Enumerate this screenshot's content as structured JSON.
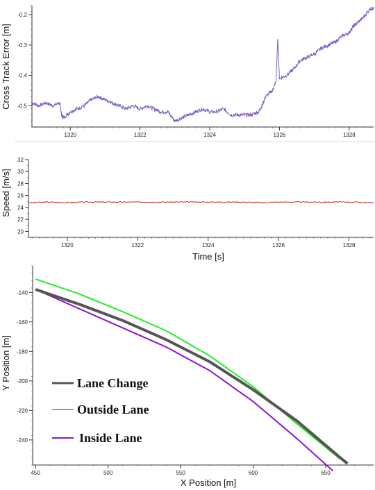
{
  "chart_data": [
    {
      "type": "line",
      "ylabel": "Cross Track Error [m]",
      "xlabel": "",
      "xlim": [
        1318.9,
        1328.7
      ],
      "ylim": [
        -0.57,
        -0.17
      ],
      "xticks": [
        1320,
        1322,
        1324,
        1326,
        1328
      ],
      "yticks": [
        -0.5,
        -0.4,
        -0.3,
        -0.2
      ],
      "grid": false,
      "series": [
        {
          "color": "#7b5cc4",
          "x": [
            1318.9,
            1319.1,
            1319.3,
            1319.5,
            1319.7,
            1319.75,
            1319.8,
            1320.0,
            1320.2,
            1320.4,
            1320.6,
            1320.8,
            1321.0,
            1321.2,
            1321.4,
            1321.6,
            1321.8,
            1322.0,
            1322.2,
            1322.4,
            1322.6,
            1322.8,
            1323.0,
            1323.2,
            1323.4,
            1323.6,
            1323.8,
            1324.0,
            1324.2,
            1324.4,
            1324.6,
            1324.8,
            1325.0,
            1325.2,
            1325.4,
            1325.5,
            1325.6,
            1325.8,
            1325.9,
            1325.95,
            1326.0,
            1326.2,
            1326.4,
            1326.6,
            1326.8,
            1327.0,
            1327.2,
            1327.4,
            1327.6,
            1327.8,
            1328.0,
            1328.1,
            1328.2,
            1328.4,
            1328.6,
            1328.7
          ],
          "y": [
            -0.49,
            -0.5,
            -0.49,
            -0.5,
            -0.49,
            -0.53,
            -0.54,
            -0.52,
            -0.51,
            -0.5,
            -0.48,
            -0.47,
            -0.48,
            -0.49,
            -0.5,
            -0.51,
            -0.5,
            -0.51,
            -0.5,
            -0.51,
            -0.52,
            -0.52,
            -0.55,
            -0.54,
            -0.53,
            -0.52,
            -0.51,
            -0.52,
            -0.52,
            -0.51,
            -0.53,
            -0.53,
            -0.53,
            -0.53,
            -0.52,
            -0.5,
            -0.47,
            -0.45,
            -0.42,
            -0.28,
            -0.41,
            -0.4,
            -0.38,
            -0.35,
            -0.34,
            -0.33,
            -0.31,
            -0.3,
            -0.29,
            -0.27,
            -0.26,
            -0.24,
            -0.23,
            -0.21,
            -0.18,
            -0.18
          ]
        }
      ]
    },
    {
      "type": "line",
      "ylabel": "Speed [m/s]",
      "xlabel": "Time [s]",
      "xlim": [
        1318.9,
        1328.7
      ],
      "ylim": [
        19,
        32
      ],
      "xticks": [
        1320,
        1322,
        1324,
        1326,
        1328
      ],
      "yticks": [
        20,
        22,
        24,
        26,
        28,
        30,
        32
      ],
      "grid": false,
      "series": [
        {
          "color": "#c0392b",
          "x": [
            1318.9,
            1319.5,
            1320.0,
            1320.5,
            1321.0,
            1321.5,
            1322.0,
            1322.5,
            1323.0,
            1323.5,
            1324.0,
            1324.5,
            1325.0,
            1325.5,
            1326.0,
            1326.5,
            1327.0,
            1327.5,
            1328.0,
            1328.7
          ],
          "y": [
            24.8,
            24.9,
            24.8,
            24.9,
            24.9,
            24.9,
            24.9,
            24.9,
            24.9,
            24.9,
            24.9,
            24.9,
            24.9,
            24.8,
            24.9,
            24.9,
            24.9,
            24.9,
            24.9,
            24.8
          ]
        }
      ]
    },
    {
      "type": "line",
      "ylabel": "Y Position [m]",
      "xlabel": "X Position [m]",
      "xlim": [
        448,
        683
      ],
      "ylim": [
        -257,
        -122
      ],
      "xticks": [
        450,
        500,
        550,
        600,
        650
      ],
      "yticks": [
        -240,
        -220,
        -200,
        -180,
        -160,
        -140
      ],
      "grid": false,
      "legend_position": "lower-left",
      "series": [
        {
          "name": "Lane Change",
          "color": "#555555",
          "x": [
            450,
            480,
            510,
            540,
            570,
            600,
            630,
            660,
            665
          ],
          "y": [
            -138,
            -148,
            -159,
            -172,
            -187,
            -206,
            -227,
            -252,
            -256
          ]
        },
        {
          "name": "Outside Lane",
          "color": "#22ee22",
          "x": [
            450,
            480,
            510,
            540,
            570,
            600,
            630,
            660
          ],
          "y": [
            -131,
            -141,
            -153,
            -166,
            -183,
            -204,
            -229,
            -253
          ]
        },
        {
          "name": "Inside Lane",
          "color": "#8a14d4",
          "x": [
            450,
            480,
            510,
            540,
            570,
            600,
            630,
            655
          ],
          "y": [
            -138,
            -151,
            -164,
            -177,
            -193,
            -214,
            -239,
            -261
          ]
        }
      ]
    }
  ]
}
